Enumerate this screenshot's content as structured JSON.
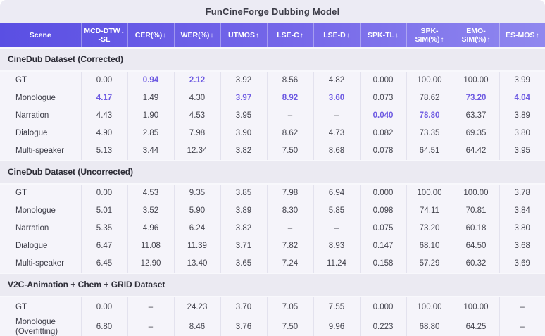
{
  "title": "FunCineForge Dubbing Model",
  "colors": {
    "header_gradient_start": "#5a4fe3",
    "header_gradient_end": "#9088ef",
    "header_text": "#ffffff",
    "highlight": "#6e5be2",
    "section_band_bg": "#ebeaf2",
    "body_bg": "#f5f4fa"
  },
  "chart_data": {
    "type": "table",
    "title": "FunCineForge Dubbing Model",
    "columns": [
      {
        "label": "Scene",
        "arrow": "",
        "sub": ""
      },
      {
        "label": "MCD-DTW",
        "arrow": "↓",
        "sub": "-SL"
      },
      {
        "label": "CER(%)",
        "arrow": "↓",
        "sub": ""
      },
      {
        "label": "WER(%)",
        "arrow": "↓",
        "sub": ""
      },
      {
        "label": "UTMOS",
        "arrow": "↑",
        "sub": ""
      },
      {
        "label": "LSE-C",
        "arrow": "↑",
        "sub": ""
      },
      {
        "label": "LSE-D",
        "arrow": "↓",
        "sub": ""
      },
      {
        "label": "SPK-TL",
        "arrow": "↓",
        "sub": ""
      },
      {
        "label": "SPK-SIM(%)",
        "arrow": "↑",
        "sub": ""
      },
      {
        "label": "EMO-SIM(%)",
        "arrow": "↑",
        "sub": ""
      },
      {
        "label": "ES-MOS",
        "arrow": "↑",
        "sub": ""
      }
    ],
    "sections": [
      {
        "label": "CineDub Dataset (Corrected)",
        "rows": [
          {
            "scene": "GT",
            "values": [
              "0.00",
              "0.94",
              "2.12",
              "3.92",
              "8.56",
              "4.82",
              "0.000",
              "100.00",
              "100.00",
              "3.99"
            ],
            "highlight": [
              1,
              2
            ]
          },
          {
            "scene": "Monologue",
            "values": [
              "4.17",
              "1.49",
              "4.30",
              "3.97",
              "8.92",
              "3.60",
              "0.073",
              "78.62",
              "73.20",
              "4.04"
            ],
            "highlight": [
              0,
              3,
              4,
              5,
              8,
              9
            ]
          },
          {
            "scene": "Narration",
            "values": [
              "4.43",
              "1.90",
              "4.53",
              "3.95",
              "–",
              "–",
              "0.040",
              "78.80",
              "63.37",
              "3.89"
            ],
            "highlight": [
              6,
              7
            ]
          },
          {
            "scene": "Dialogue",
            "values": [
              "4.90",
              "2.85",
              "7.98",
              "3.90",
              "8.62",
              "4.73",
              "0.082",
              "73.35",
              "69.35",
              "3.80"
            ],
            "highlight": []
          },
          {
            "scene": "Multi-speaker",
            "values": [
              "5.13",
              "3.44",
              "12.34",
              "3.82",
              "7.50",
              "8.68",
              "0.078",
              "64.51",
              "64.42",
              "3.95"
            ],
            "highlight": []
          }
        ]
      },
      {
        "label": "CineDub Dataset (Uncorrected)",
        "rows": [
          {
            "scene": "GT",
            "values": [
              "0.00",
              "4.53",
              "9.35",
              "3.85",
              "7.98",
              "6.94",
              "0.000",
              "100.00",
              "100.00",
              "3.78"
            ],
            "highlight": []
          },
          {
            "scene": "Monologue",
            "values": [
              "5.01",
              "3.52",
              "5.90",
              "3.89",
              "8.30",
              "5.85",
              "0.098",
              "74.11",
              "70.81",
              "3.84"
            ],
            "highlight": []
          },
          {
            "scene": "Narration",
            "values": [
              "5.35",
              "4.96",
              "6.24",
              "3.82",
              "–",
              "–",
              "0.075",
              "73.20",
              "60.18",
              "3.80"
            ],
            "highlight": []
          },
          {
            "scene": "Dialogue",
            "values": [
              "6.47",
              "11.08",
              "11.39",
              "3.71",
              "7.82",
              "8.93",
              "0.147",
              "68.10",
              "64.50",
              "3.68"
            ],
            "highlight": []
          },
          {
            "scene": "Multi-speaker",
            "values": [
              "6.45",
              "12.90",
              "13.40",
              "3.65",
              "7.24",
              "11.24",
              "0.158",
              "57.29",
              "60.32",
              "3.69"
            ],
            "highlight": []
          }
        ]
      },
      {
        "label": "V2C-Animation + Chem + GRID Dataset",
        "rows": [
          {
            "scene": "GT",
            "values": [
              "0.00",
              "–",
              "24.23",
              "3.70",
              "7.05",
              "7.55",
              "0.000",
              "100.00",
              "100.00",
              "–"
            ],
            "highlight": []
          },
          {
            "scene": "Monologue (Overfitting)",
            "values": [
              "6.80",
              "–",
              "8.46",
              "3.76",
              "7.50",
              "9.96",
              "0.223",
              "68.80",
              "64.25",
              "–"
            ],
            "highlight": []
          }
        ]
      }
    ]
  }
}
